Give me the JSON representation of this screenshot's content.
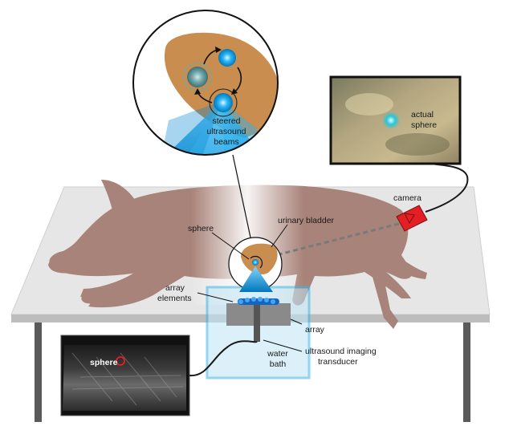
{
  "labels": {
    "steered_beams": [
      "steered",
      "ultrasound",
      "beams"
    ],
    "actual_sphere": [
      "actual",
      "sphere"
    ],
    "camera": "camera",
    "sphere": "sphere",
    "urinary_bladder": "urinary bladder",
    "array_elements": [
      "array",
      "elements"
    ],
    "array": "array",
    "ultrasound_transducer": [
      "ultrasound imaging",
      "transducer"
    ],
    "water_bath": [
      "water",
      "bath"
    ],
    "ultrasound_image_sphere": "sphere"
  },
  "colors": {
    "pig": "#a88379",
    "bladder": "#c88d4f",
    "beam": "#29b6f6",
    "water": "#3ab4e6",
    "camera": "#e31e24",
    "marker": "#e31e24",
    "table": "#e6e6e6",
    "legs": "#5a5a5a"
  }
}
